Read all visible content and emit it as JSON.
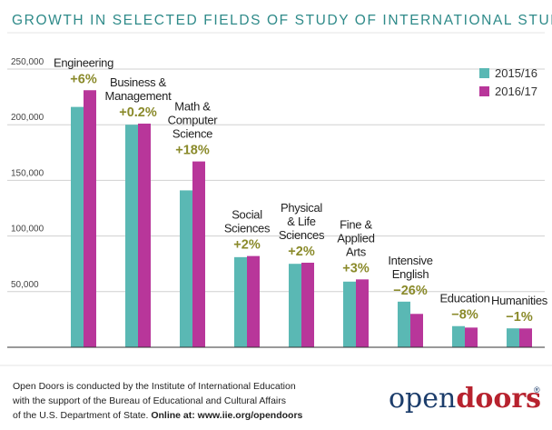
{
  "chart_data": {
    "type": "bar",
    "title": "GROWTH IN SELECTED FIELDS OF STUDY OF INTERNATIONAL STUDENTS",
    "ylim": [
      0,
      250000
    ],
    "yticks": [
      50000,
      100000,
      150000,
      200000,
      250000
    ],
    "ytick_labels": [
      "50,000",
      "100,000",
      "150,000",
      "200,000",
      "250,000"
    ],
    "grid": true,
    "legend_position": "top-right",
    "categories": [
      {
        "lines": [
          "Engineering"
        ],
        "pct": "+6%"
      },
      {
        "lines": [
          "Business &",
          "Management"
        ],
        "pct": "+0.2%"
      },
      {
        "lines": [
          "Math &",
          "Computer",
          "Science"
        ],
        "pct": "+18%"
      },
      {
        "lines": [
          "Social",
          "Sciences"
        ],
        "pct": "+2%"
      },
      {
        "lines": [
          "Physical",
          "& Life",
          "Sciences"
        ],
        "pct": "+2%"
      },
      {
        "lines": [
          "Fine &",
          "Applied",
          "Arts"
        ],
        "pct": "+3%"
      },
      {
        "lines": [
          "Intensive",
          "English"
        ],
        "pct": "−26%"
      },
      {
        "lines": [
          "Education"
        ],
        "pct": "−8%"
      },
      {
        "lines": [
          "Humanities"
        ],
        "pct": "−1%"
      }
    ],
    "series": [
      {
        "name": "2015/16",
        "color": "#5ab8b4",
        "values": [
          216000,
          200000,
          141000,
          81000,
          75000,
          59000,
          41000,
          19000,
          17000
        ]
      },
      {
        "name": "2016/17",
        "color": "#b8369a",
        "values": [
          231000,
          201000,
          167000,
          82000,
          76000,
          61000,
          30000,
          17700,
          16900
        ]
      }
    ]
  },
  "footer": {
    "line1": "Open Doors is conducted by the Institute of International Education",
    "line2": "with the support of the Bureau of Educational and Cultural Affairs",
    "line3_prefix": "of the U.S. Department of State. ",
    "line3_bold": "Online at: www.iie.org/opendoors"
  },
  "logo": {
    "open": "open",
    "doors": "doors",
    "reg": "®"
  }
}
